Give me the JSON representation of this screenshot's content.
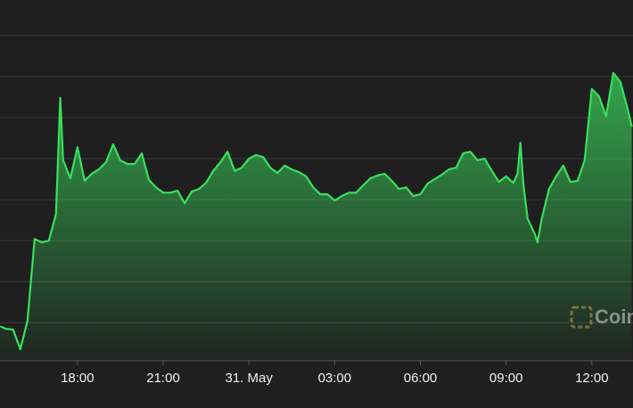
{
  "chart_data": {
    "type": "area",
    "x": [
      15.3,
      15.5,
      15.75,
      16.0,
      16.25,
      16.5,
      16.75,
      17.0,
      17.25,
      17.4,
      17.5,
      17.75,
      18.0,
      18.25,
      18.5,
      18.75,
      19.0,
      19.25,
      19.5,
      19.75,
      20.0,
      20.25,
      20.5,
      20.75,
      21.0,
      21.25,
      21.5,
      21.75,
      22.0,
      22.25,
      22.5,
      22.75,
      23.0,
      23.25,
      23.5,
      23.75,
      24.0,
      24.25,
      24.5,
      24.75,
      25.0,
      25.25,
      25.5,
      25.75,
      26.0,
      26.25,
      26.5,
      26.75,
      27.0,
      27.25,
      27.5,
      27.75,
      28.0,
      28.25,
      28.5,
      28.75,
      29.0,
      29.25,
      29.5,
      29.75,
      30.0,
      30.25,
      30.5,
      30.75,
      31.0,
      31.25,
      31.5,
      31.75,
      32.0,
      32.25,
      32.5,
      32.75,
      33.0,
      33.25,
      33.4,
      33.5,
      33.6,
      33.75,
      34.0,
      34.1,
      34.25,
      34.5,
      34.75,
      35.0,
      35.25,
      35.5,
      35.75,
      36.0,
      36.25,
      36.5,
      36.75,
      37.0,
      37.25,
      37.4
    ],
    "values": [
      0.91,
      0.85,
      0.83,
      0.35,
      1.04,
      3.04,
      2.96,
      3.0,
      3.65,
      6.48,
      4.96,
      4.52,
      5.28,
      4.46,
      4.63,
      4.74,
      4.91,
      5.35,
      4.96,
      4.87,
      4.87,
      5.13,
      4.48,
      4.3,
      4.17,
      4.17,
      4.22,
      3.91,
      4.2,
      4.26,
      4.41,
      4.7,
      4.91,
      5.17,
      4.7,
      4.78,
      5.0,
      5.09,
      5.04,
      4.78,
      4.65,
      4.83,
      4.74,
      4.67,
      4.57,
      4.3,
      4.13,
      4.13,
      3.98,
      4.09,
      4.17,
      4.17,
      4.35,
      4.52,
      4.59,
      4.63,
      4.46,
      4.26,
      4.3,
      4.09,
      4.13,
      4.39,
      4.5,
      4.61,
      4.74,
      4.78,
      5.13,
      5.17,
      4.96,
      5.0,
      4.7,
      4.43,
      4.57,
      4.41,
      4.63,
      5.39,
      4.41,
      3.54,
      3.17,
      2.96,
      3.54,
      4.26,
      4.57,
      4.83,
      4.43,
      4.46,
      4.96,
      6.7,
      6.52,
      6.04,
      7.09,
      6.87,
      6.22,
      5.78
    ],
    "color": "#38e05c",
    "xlim": [
      15.29,
      37.44
    ],
    "xticks": [
      {
        "value": 18,
        "label": "18:00"
      },
      {
        "value": 21,
        "label": "21:00"
      },
      {
        "value": 24,
        "label": "31. May"
      },
      {
        "value": 27,
        "label": "03:00"
      },
      {
        "value": 30,
        "label": "06:00"
      },
      {
        "value": 33,
        "label": "09:00"
      },
      {
        "value": 36,
        "label": "12:00"
      }
    ],
    "ylim": [
      0.07,
      8.87
    ],
    "yticks": [
      1,
      2,
      3,
      4,
      5,
      6,
      7,
      8
    ],
    "grid": true,
    "watermark": "Coin"
  }
}
